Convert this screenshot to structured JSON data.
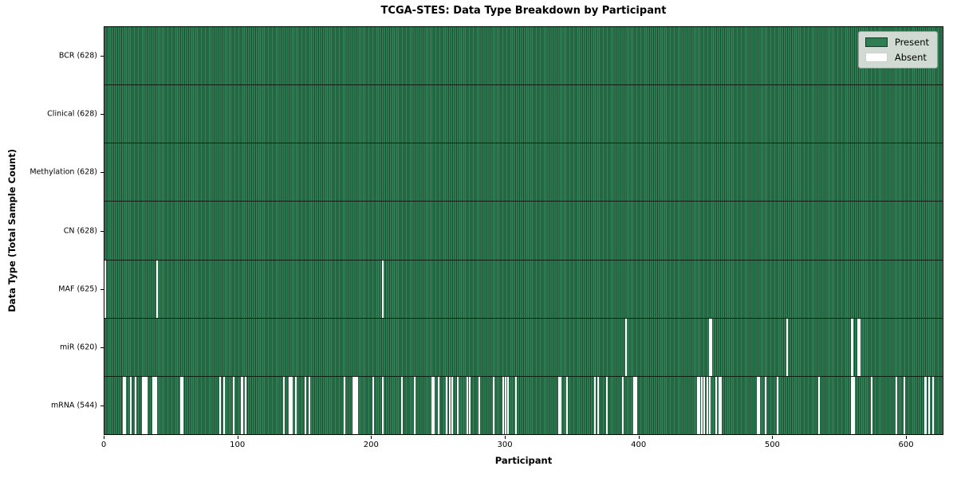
{
  "chart_data": {
    "type": "heatmap",
    "title": "TCGA-STES: Data Type Breakdown by Participant",
    "xlabel": "Participant",
    "ylabel": "Data Type (Total Sample Count)",
    "x_ticks": [
      0,
      100,
      200,
      300,
      400,
      500,
      600
    ],
    "x_range": [
      0,
      628
    ],
    "n_participants": 628,
    "grid": false,
    "legend_position": "upper right",
    "legend": [
      {
        "label": "Present",
        "color": "#2f7e53"
      },
      {
        "label": "Absent",
        "color": "#ffffff"
      }
    ],
    "colors": {
      "present": "#2f7e53",
      "present_edge": "#174b2c",
      "absent": "#ffffff"
    },
    "rows": [
      {
        "data_type": "BCR",
        "label": "BCR (628)",
        "present_count": 628,
        "absent_count": 0,
        "absent_participants": []
      },
      {
        "data_type": "Clinical",
        "label": "Clinical (628)",
        "present_count": 628,
        "absent_count": 0,
        "absent_participants": []
      },
      {
        "data_type": "Methylation",
        "label": "Methylation (628)",
        "present_count": 628,
        "absent_count": 0,
        "absent_participants": []
      },
      {
        "data_type": "CN",
        "label": "CN (628)",
        "present_count": 628,
        "absent_count": 0,
        "absent_participants": []
      },
      {
        "data_type": "MAF",
        "label": "MAF (625)",
        "present_count": 625,
        "absent_count": 3,
        "absent_participants": [
          0,
          39,
          208
        ]
      },
      {
        "data_type": "miR",
        "label": "miR (620)",
        "present_count": 620,
        "absent_count": 8,
        "absent_participants": [
          390,
          453,
          454,
          511,
          559,
          560,
          564,
          565
        ]
      },
      {
        "data_type": "mRNA",
        "label": "mRNA (544)",
        "present_count": 544,
        "absent_count": 84,
        "absent_participants": [
          14,
          15,
          19,
          23,
          28,
          29,
          30,
          31,
          36,
          37,
          38,
          57,
          58,
          86,
          89,
          96,
          102,
          103,
          105,
          134,
          138,
          139,
          140,
          143,
          150,
          153,
          179,
          186,
          187,
          188,
          189,
          201,
          208,
          222,
          232,
          245,
          246,
          250,
          256,
          258,
          260,
          264,
          271,
          273,
          280,
          291,
          298,
          300,
          302,
          308,
          340,
          341,
          346,
          367,
          369,
          376,
          388,
          396,
          397,
          398,
          444,
          445,
          447,
          449,
          451,
          453,
          458,
          460,
          461,
          489,
          490,
          495,
          504,
          535,
          559,
          560,
          561,
          574,
          593,
          599,
          614,
          615,
          617,
          620
        ]
      }
    ]
  }
}
